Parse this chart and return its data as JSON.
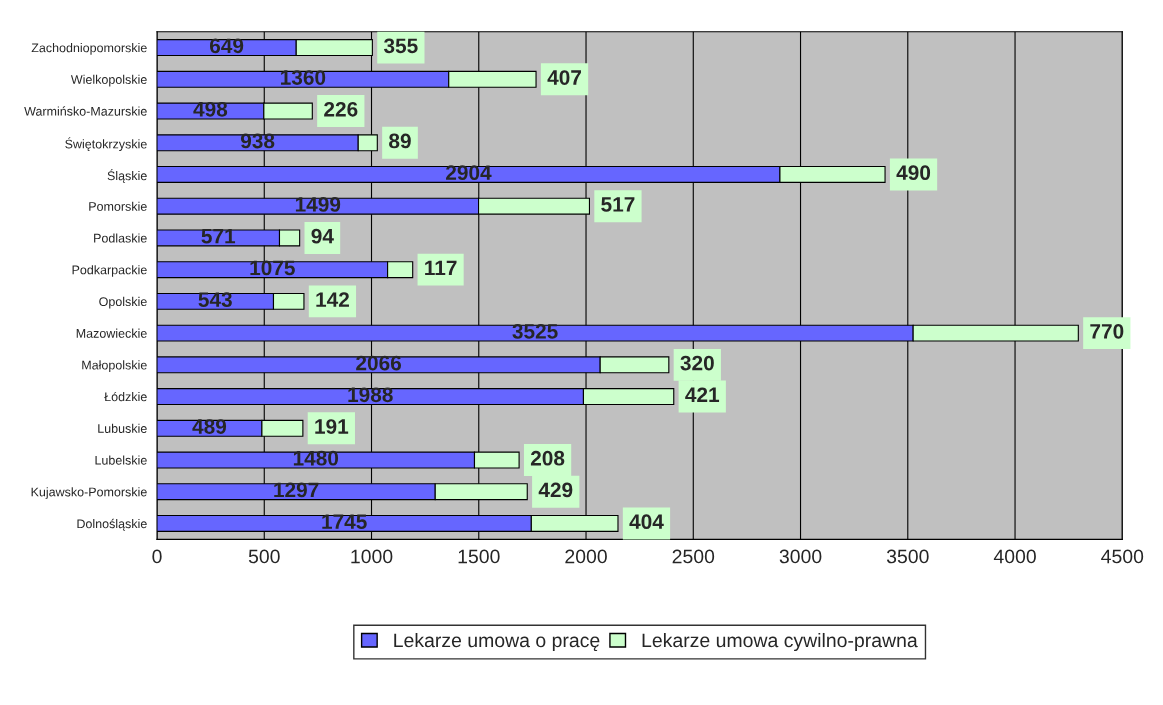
{
  "chart_data": {
    "type": "bar",
    "orientation": "horizontal",
    "stacked": true,
    "categories": [
      "Zachodniopomorskie",
      "Wielkopolskie",
      "Warmińsko-Mazurskie",
      "Świętokrzyskie",
      "Śląskie",
      "Pomorskie",
      "Podlaskie",
      "Podkarpackie",
      "Opolskie",
      "Mazowieckie",
      "Małopolskie",
      "Łódzkie",
      "Lubuskie",
      "Lubelskie",
      "Kujawsko-Pomorskie",
      "Dolnośląskie"
    ],
    "series": [
      {
        "name": "Lekarze umowa o pracę",
        "color": "#6666ff",
        "values": [
          649,
          1360,
          498,
          938,
          2904,
          1499,
          571,
          1075,
          543,
          3525,
          2066,
          1988,
          489,
          1480,
          1297,
          1745
        ]
      },
      {
        "name": "Lekarze umowa cywilno-prawna",
        "color": "#ccffcc",
        "values": [
          355,
          407,
          226,
          89,
          490,
          517,
          94,
          117,
          142,
          770,
          320,
          421,
          191,
          208,
          429,
          404
        ]
      }
    ],
    "xlim": [
      0,
      4500
    ],
    "xticks": [
      0,
      500,
      1000,
      1500,
      2000,
      2500,
      3000,
      3500,
      4000,
      4500
    ],
    "grid": "x",
    "legend": "bottom",
    "data_labels": true
  }
}
